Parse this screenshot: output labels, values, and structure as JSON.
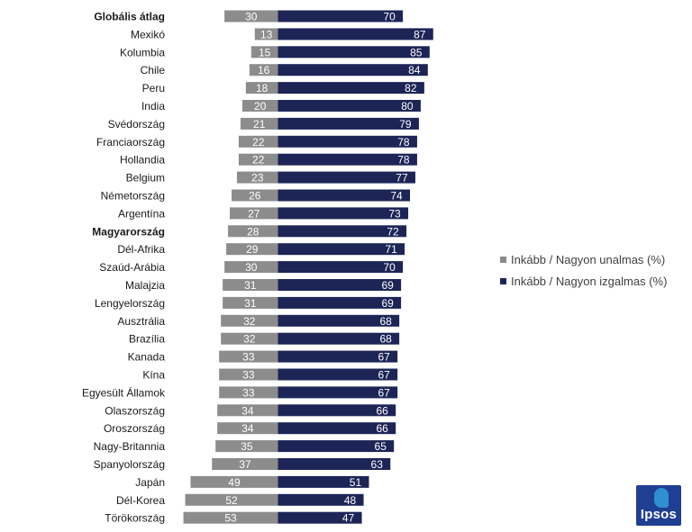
{
  "chart_data": {
    "type": "bar",
    "orientation": "horizontal",
    "stacked": "diverging",
    "categories": [
      "Globális átlag",
      "Mexikó",
      "Kolumbia",
      "Chile",
      "Peru",
      "India",
      "Svédország",
      "Franciaország",
      "Hollandia",
      "Belgium",
      "Németország",
      "Argentína",
      "Magyarország",
      "Dél-Afrika",
      "Szaúd-Arábia",
      "Malajzia",
      "Lengyelország",
      "Ausztrália",
      "Brazília",
      "Kanada",
      "Kína",
      "Egyesült Államok",
      "Olaszország",
      "Oroszország",
      "Nagy-Britannia",
      "Spanyolország",
      "Japán",
      "Dél-Korea",
      "Törökország"
    ],
    "bold_categories": [
      "Globális átlag",
      "Magyarország"
    ],
    "series": [
      {
        "name": "Inkább / Nagyon unalmas (%)",
        "color": "#8c8c8c",
        "values": [
          30,
          13,
          15,
          16,
          18,
          20,
          21,
          22,
          22,
          23,
          26,
          27,
          28,
          29,
          30,
          31,
          31,
          32,
          32,
          33,
          33,
          33,
          34,
          34,
          35,
          37,
          49,
          52,
          53
        ]
      },
      {
        "name": "Inkább / Nagyon izgalmas (%)",
        "color": "#1c2556",
        "values": [
          70,
          87,
          85,
          84,
          82,
          80,
          79,
          78,
          78,
          77,
          74,
          73,
          72,
          71,
          70,
          69,
          69,
          68,
          68,
          67,
          67,
          67,
          66,
          66,
          65,
          63,
          51,
          48,
          47
        ]
      }
    ],
    "grid": false,
    "legend_position": "right"
  },
  "logo": {
    "text": "Ipsos",
    "name": "ipsos-logo-icon"
  }
}
